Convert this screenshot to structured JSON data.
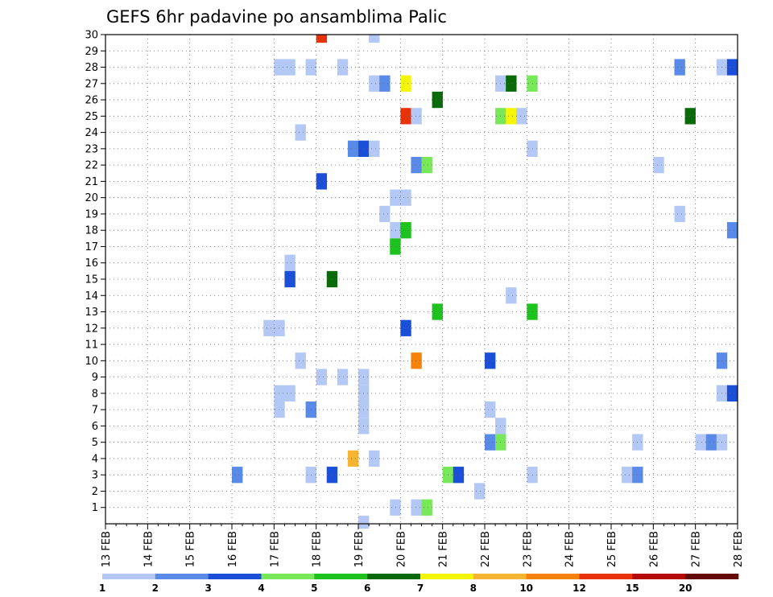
{
  "chart_data": {
    "type": "heatmap",
    "title": "GEFS 6hr padavine po ansamblima Palic",
    "xlabel": "",
    "ylabel": "",
    "x_ticks": [
      "13 FEB",
      "14 FEB",
      "15 FEB",
      "16 FEB",
      "17 FEB",
      "18 FEB",
      "19 FEB",
      "20 FEB",
      "21 FEB",
      "22 FEB",
      "23 FEB",
      "24 FEB",
      "25 FEB",
      "26 FEB",
      "27 FEB",
      "28 FEB"
    ],
    "x_range": [
      "13 FEB 00Z",
      "28 FEB 00Z"
    ],
    "x_step_hours": 6,
    "y_ticks": [
      1,
      2,
      3,
      4,
      5,
      6,
      7,
      8,
      9,
      10,
      11,
      12,
      13,
      14,
      15,
      16,
      17,
      18,
      19,
      20,
      21,
      22,
      23,
      24,
      25,
      26,
      27,
      28,
      29,
      30
    ],
    "ylim": [
      0,
      30
    ],
    "grid": "dotted",
    "colorbar": {
      "position": "bottom",
      "bins": [
        {
          "label": "1",
          "color": "#b4c8f5"
        },
        {
          "label": "2",
          "color": "#5a8ae8"
        },
        {
          "label": "3",
          "color": "#1b4fd8"
        },
        {
          "label": "4",
          "color": "#78e85a"
        },
        {
          "label": "5",
          "color": "#1ec21e"
        },
        {
          "label": "6",
          "color": "#0a6a0a"
        },
        {
          "label": "7",
          "color": "#f5f50a"
        },
        {
          "label": "8",
          "color": "#f5b432"
        },
        {
          "label": "10",
          "color": "#f5820a"
        },
        {
          "label": "12",
          "color": "#e8320a"
        },
        {
          "label": "15",
          "color": "#b40a0a"
        },
        {
          "label": "20",
          "color": "#640a0a"
        }
      ]
    },
    "cells_note": "member, 6h step index from 13 FEB 00Z, colour bin index",
    "cells": [
      [
        30,
        20,
        9
      ],
      [
        30,
        25,
        0
      ],
      [
        28,
        16,
        0
      ],
      [
        28,
        17,
        0
      ],
      [
        28,
        19,
        0
      ],
      [
        28,
        22,
        0
      ],
      [
        28,
        54,
        1
      ],
      [
        28,
        58,
        0
      ],
      [
        28,
        59,
        2
      ],
      [
        27,
        25,
        0
      ],
      [
        27,
        26,
        1
      ],
      [
        27,
        28,
        6
      ],
      [
        27,
        37,
        0
      ],
      [
        27,
        38,
        5
      ],
      [
        27,
        40,
        3
      ],
      [
        26,
        31,
        5
      ],
      [
        25,
        28,
        9
      ],
      [
        25,
        29,
        0
      ],
      [
        25,
        37,
        3
      ],
      [
        25,
        38,
        6
      ],
      [
        25,
        39,
        0
      ],
      [
        25,
        55,
        5
      ],
      [
        24,
        18,
        0
      ],
      [
        23,
        23,
        1
      ],
      [
        23,
        24,
        2
      ],
      [
        23,
        25,
        0
      ],
      [
        23,
        40,
        0
      ],
      [
        22,
        29,
        1
      ],
      [
        22,
        30,
        3
      ],
      [
        22,
        52,
        0
      ],
      [
        21,
        20,
        2
      ],
      [
        20,
        27,
        0
      ],
      [
        20,
        28,
        0
      ],
      [
        19,
        26,
        0
      ],
      [
        19,
        54,
        0
      ],
      [
        18,
        27,
        0
      ],
      [
        18,
        28,
        4
      ],
      [
        18,
        59,
        1
      ],
      [
        17,
        27,
        4
      ],
      [
        16,
        17,
        0
      ],
      [
        15,
        17,
        2
      ],
      [
        15,
        21,
        5
      ],
      [
        14,
        38,
        0
      ],
      [
        13,
        31,
        4
      ],
      [
        13,
        40,
        4
      ],
      [
        12,
        15,
        0
      ],
      [
        12,
        16,
        0
      ],
      [
        12,
        28,
        2
      ],
      [
        10,
        18,
        0
      ],
      [
        10,
        29,
        8
      ],
      [
        10,
        36,
        2
      ],
      [
        10,
        58,
        1
      ],
      [
        9,
        20,
        0
      ],
      [
        9,
        22,
        0
      ],
      [
        9,
        24,
        0
      ],
      [
        8,
        16,
        0
      ],
      [
        8,
        17,
        0
      ],
      [
        8,
        24,
        0
      ],
      [
        8,
        58,
        0
      ],
      [
        8,
        59,
        2
      ],
      [
        7,
        16,
        0
      ],
      [
        7,
        19,
        1
      ],
      [
        7,
        24,
        0
      ],
      [
        7,
        36,
        0
      ],
      [
        6,
        24,
        0
      ],
      [
        6,
        37,
        0
      ],
      [
        5,
        36,
        1
      ],
      [
        5,
        37,
        3
      ],
      [
        5,
        50,
        0
      ],
      [
        5,
        56,
        0
      ],
      [
        5,
        57,
        1
      ],
      [
        5,
        58,
        0
      ],
      [
        4,
        23,
        7
      ],
      [
        4,
        25,
        0
      ],
      [
        3,
        12,
        1
      ],
      [
        3,
        19,
        0
      ],
      [
        3,
        21,
        2
      ],
      [
        3,
        32,
        3
      ],
      [
        3,
        33,
        2
      ],
      [
        3,
        40,
        0
      ],
      [
        3,
        49,
        0
      ],
      [
        3,
        50,
        1
      ],
      [
        2,
        35,
        0
      ],
      [
        1,
        27,
        0
      ],
      [
        1,
        29,
        0
      ],
      [
        1,
        30,
        3
      ],
      [
        0,
        24,
        0
      ]
    ]
  }
}
